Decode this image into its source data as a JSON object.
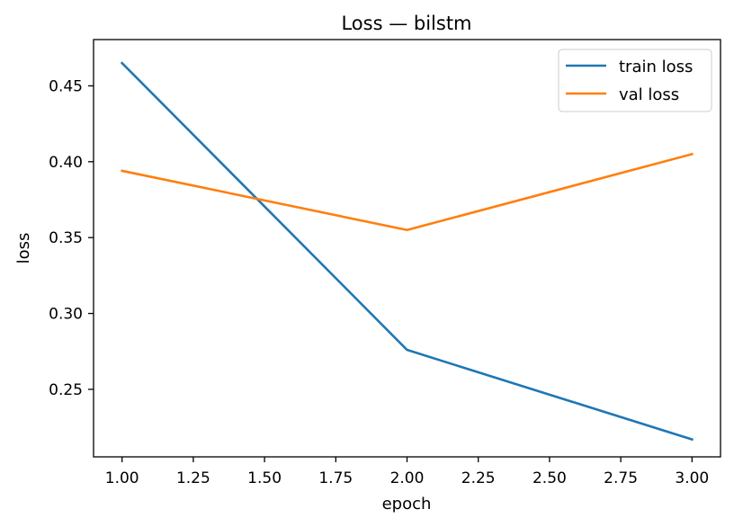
{
  "chart_data": {
    "type": "line",
    "title": "Loss — bilstm",
    "xlabel": "epoch",
    "ylabel": "loss",
    "xlim": [
      0.9,
      3.1
    ],
    "ylim": [
      0.2055,
      0.4805
    ],
    "x_ticks": [
      "1.00",
      "1.25",
      "1.50",
      "1.75",
      "2.00",
      "2.25",
      "2.50",
      "2.75",
      "3.00"
    ],
    "y_ticks": [
      "0.25",
      "0.30",
      "0.35",
      "0.40",
      "0.45"
    ],
    "grid": false,
    "legend_position": "top-right",
    "series": [
      {
        "name": "train loss",
        "color": "#1f77b4",
        "x": [
          1,
          2,
          3
        ],
        "y": [
          0.465,
          0.276,
          0.217
        ]
      },
      {
        "name": "val loss",
        "color": "#ff7f0e",
        "x": [
          1,
          2,
          3
        ],
        "y": [
          0.394,
          0.355,
          0.405
        ]
      }
    ]
  }
}
